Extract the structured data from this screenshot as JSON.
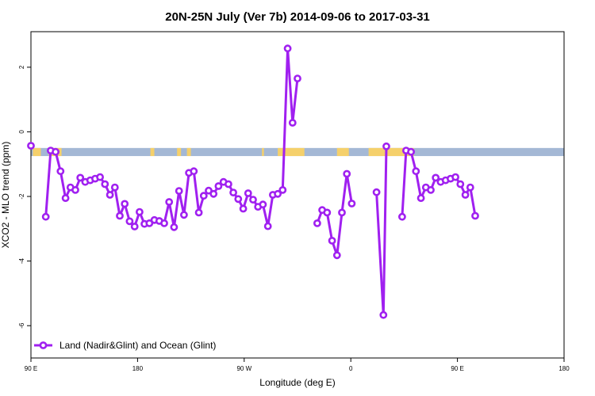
{
  "chart_data": {
    "type": "line",
    "title": "20N-25N July (Ver 7b)   2014-09-06 to 2017-03-31",
    "xlabel": "Longitude (deg E)",
    "ylabel": "XCO2 - MLO trend (ppm)",
    "xlim": [
      -90,
      180
    ],
    "ylim": [
      -7,
      3.1
    ],
    "x_ticks": [
      {
        "value": -90,
        "label": "90 E"
      },
      {
        "value": -36,
        "label": "180"
      },
      {
        "value": 18,
        "label": "90 W"
      },
      {
        "value": 72,
        "label": "0"
      },
      {
        "value": 126,
        "label": "90 E"
      },
      {
        "value": 180,
        "label": "180"
      }
    ],
    "y_ticks": [
      2,
      0,
      -2,
      -4,
      -6
    ],
    "grid": false,
    "legend": {
      "position": "bottom-left",
      "entries": [
        "Land (Nadir&Glint) and Ocean (Glint)"
      ]
    },
    "land_ocean_strip": {
      "y_range": [
        -0.75,
        -0.5
      ],
      "ocean_color": "#a4b8d5",
      "land_color": "#f5d06b"
    },
    "series_color": "#a020f0",
    "series": [
      {
        "name": "Land (Nadir&Glint) and Ocean (Glint)",
        "segments": [
          [
            [
              -90,
              -0.43
            ]
          ],
          [
            [
              -82.5,
              -2.63
            ],
            [
              -80,
              -0.58
            ],
            [
              -77.5,
              -0.62
            ],
            [
              -75,
              -1.22
            ],
            [
              -72.5,
              -2.05
            ],
            [
              -70,
              -1.72
            ],
            [
              -67.5,
              -1.8
            ],
            [
              -65,
              -1.42
            ],
            [
              -62.5,
              -1.55
            ],
            [
              -60,
              -1.5
            ],
            [
              -57.5,
              -1.45
            ],
            [
              -55,
              -1.4
            ],
            [
              -52.5,
              -1.62
            ],
            [
              -50,
              -1.95
            ],
            [
              -47.5,
              -1.72
            ],
            [
              -45,
              -2.6
            ],
            [
              -42.5,
              -2.23
            ],
            [
              -40,
              -2.77
            ],
            [
              -37.5,
              -2.93
            ],
            [
              -35,
              -2.48
            ],
            [
              -32.5,
              -2.85
            ],
            [
              -30,
              -2.83
            ],
            [
              -27.5,
              -2.73
            ],
            [
              -25,
              -2.76
            ],
            [
              -22.5,
              -2.83
            ],
            [
              -20,
              -2.17
            ],
            [
              -17.5,
              -2.95
            ],
            [
              -15,
              -1.83
            ],
            [
              -12.5,
              -2.57
            ],
            [
              -10,
              -1.27
            ],
            [
              -7.5,
              -1.22
            ],
            [
              -5,
              -2.5
            ],
            [
              -2.5,
              -1.98
            ],
            [
              0,
              -1.82
            ],
            [
              2.5,
              -1.92
            ],
            [
              5,
              -1.68
            ],
            [
              7.5,
              -1.55
            ],
            [
              10,
              -1.62
            ],
            [
              12.5,
              -1.88
            ],
            [
              15,
              -2.08
            ],
            [
              17.5,
              -2.38
            ],
            [
              20,
              -1.9
            ],
            [
              22.5,
              -2.1
            ],
            [
              25,
              -2.32
            ],
            [
              27.5,
              -2.25
            ],
            [
              30,
              -2.92
            ],
            [
              32.5,
              -1.95
            ],
            [
              35,
              -1.92
            ],
            [
              37.5,
              -1.8
            ],
            [
              40,
              2.58
            ],
            [
              42.5,
              0.28
            ],
            [
              45,
              1.65
            ]
          ],
          [
            [
              55,
              -2.83
            ],
            [
              57.5,
              -2.42
            ],
            [
              60,
              -2.5
            ],
            [
              62.5,
              -3.37
            ],
            [
              65,
              -3.82
            ],
            [
              67.5,
              -2.5
            ],
            [
              70,
              -1.3
            ],
            [
              72.5,
              -2.22
            ]
          ],
          [
            [
              85,
              -1.87
            ],
            [
              88.5,
              -5.67
            ],
            [
              90,
              -0.45
            ]
          ],
          [
            [
              98,
              -2.63
            ],
            [
              100,
              -0.58
            ],
            [
              102.5,
              -0.62
            ],
            [
              105,
              -1.22
            ],
            [
              107.5,
              -2.05
            ],
            [
              110,
              -1.72
            ],
            [
              112.5,
              -1.8
            ],
            [
              115,
              -1.42
            ],
            [
              117.5,
              -1.55
            ],
            [
              120,
              -1.5
            ],
            [
              122.5,
              -1.45
            ],
            [
              125,
              -1.4
            ],
            [
              127.5,
              -1.62
            ],
            [
              130,
              -1.95
            ],
            [
              132.5,
              -1.72
            ],
            [
              135,
              -2.6
            ]
          ]
        ]
      }
    ]
  }
}
